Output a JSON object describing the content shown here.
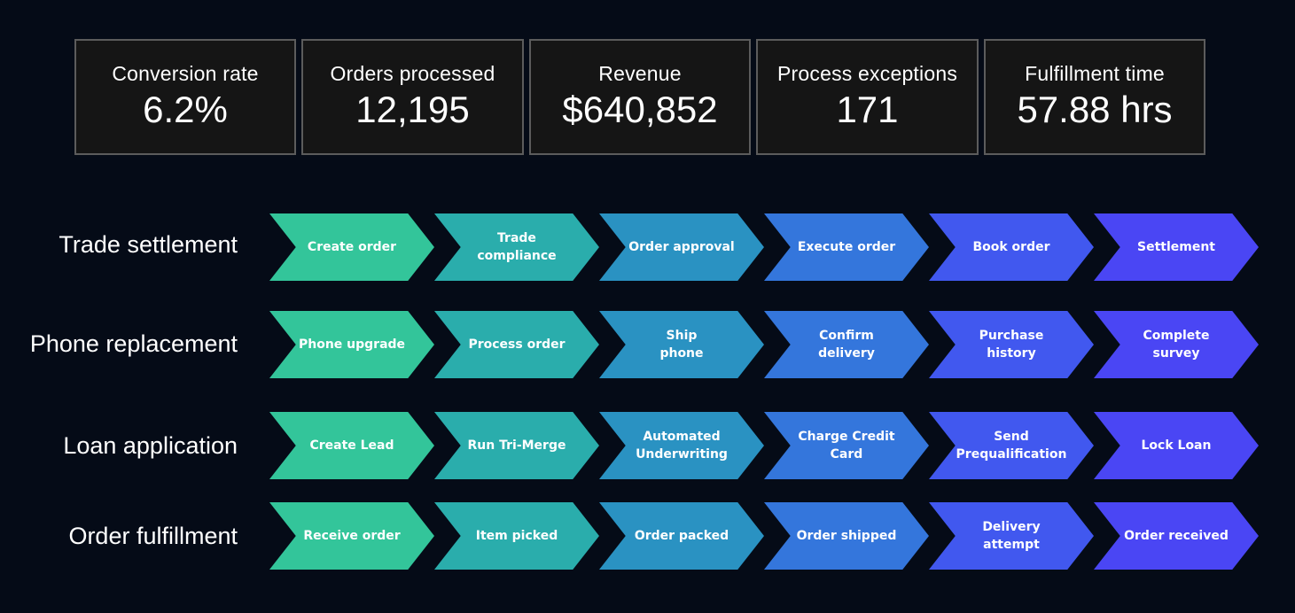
{
  "kpis": [
    {
      "label": "Conversion rate",
      "value": "6.2%"
    },
    {
      "label": "Orders processed",
      "value": "12,195"
    },
    {
      "label": "Revenue",
      "value": "$640,852"
    },
    {
      "label": "Process exceptions",
      "value": "171"
    },
    {
      "label": "Fulfillment time",
      "value": "57.88 hrs"
    }
  ],
  "colors": {
    "background": "#050b17",
    "kpi_box": "#151515",
    "kpi_border": "#5c5c5c",
    "step_gradient": [
      "#33c59a",
      "#2aadac",
      "#2a92c2",
      "#3476dc",
      "#4158ef",
      "#4a46f4"
    ]
  },
  "processes": [
    {
      "label": "Trade settlement",
      "steps": [
        "Create order",
        "Trade\ncompliance",
        "Order approval",
        "Execute order",
        "Book order",
        "Settlement"
      ]
    },
    {
      "label": "Phone replacement",
      "steps": [
        "Phone upgrade",
        "Process order",
        "Ship\nphone",
        "Confirm\ndelivery",
        "Purchase\nhistory",
        "Complete\nsurvey"
      ]
    },
    {
      "label": "Loan application",
      "steps": [
        "Create Lead",
        "Run Tri-Merge",
        "Automated\nUnderwriting",
        "Charge Credit\nCard",
        "Send\nPrequalification",
        "Lock Loan"
      ]
    },
    {
      "label": "Order fulfillment",
      "steps": [
        "Receive order",
        "Item picked",
        "Order packed",
        "Order shipped",
        "Delivery\nattempt",
        "Order received"
      ]
    }
  ]
}
